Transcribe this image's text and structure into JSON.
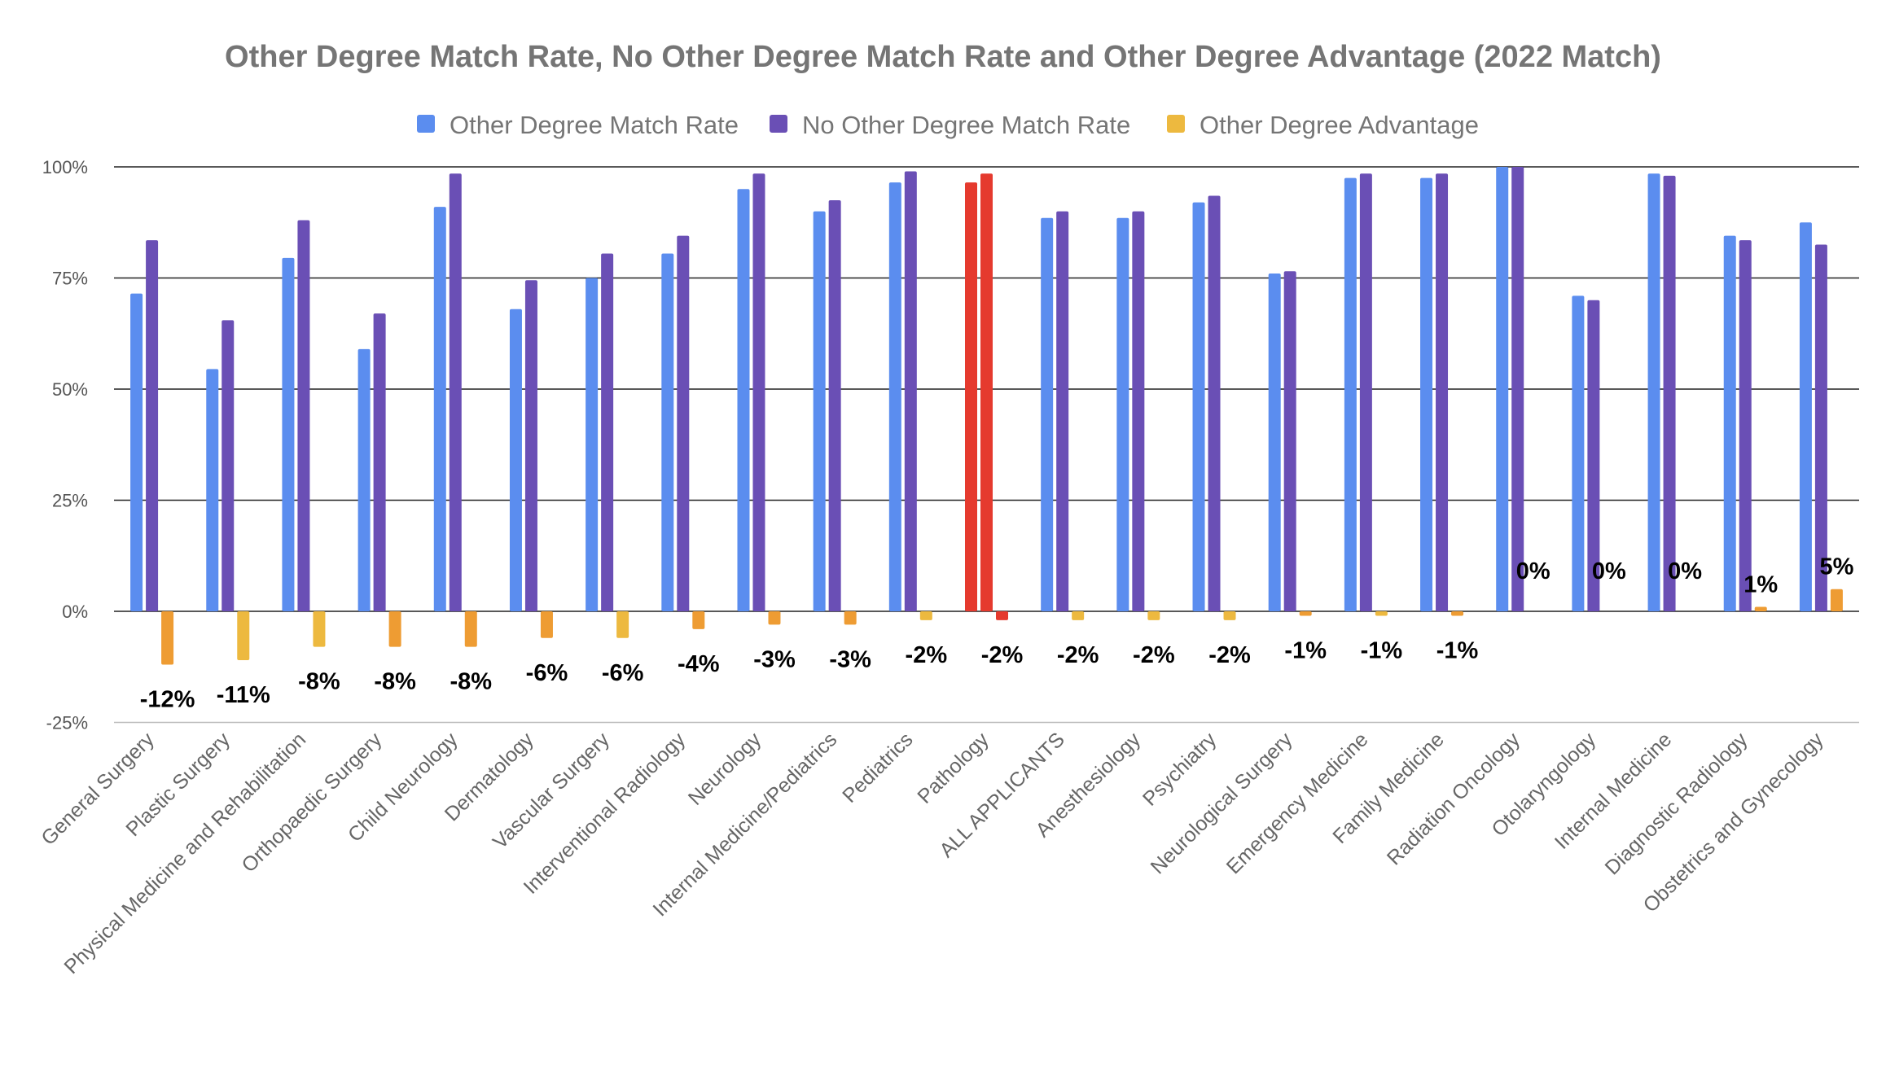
{
  "chart_data": {
    "type": "bar",
    "title": "Other Degree Match Rate, No Other Degree Match Rate and Other Degree Advantage (2022 Match)",
    "xlabel": "",
    "ylabel": "",
    "ylim": [
      -25,
      100
    ],
    "yticks": [
      100,
      75,
      50,
      25,
      0,
      -25
    ],
    "ytick_labels": [
      "100%",
      "75%",
      "50%",
      "25%",
      "0%",
      "-25%"
    ],
    "grid": true,
    "legend_position": "top",
    "categories": [
      "General Surgery",
      "Plastic Surgery",
      "Physical Medicine and Rehabilitation",
      "Orthopaedic Surgery",
      "Child Neurology",
      "Dermatology",
      "Vascular Surgery",
      "Interventional Radiology",
      "Neurology",
      "Internal Medicine/Pediatrics",
      "Pediatrics",
      "Pathology",
      "ALL APPLICANTS",
      "Anesthesiology",
      "Psychiatry",
      "Neurological Surgery",
      "Emergency Medicine",
      "Family Medicine",
      "Radiation Oncology",
      "Otolaryngology",
      "Internal Medicine",
      "Diagnostic Radiology",
      "Obstetrics and Gynecology"
    ],
    "series": [
      {
        "name": "Other Degree Match Rate",
        "color": "#5B8DEF",
        "values": [
          71.5,
          54.5,
          79.5,
          59,
          91,
          68,
          75,
          80.5,
          95,
          90,
          96.5,
          96.5,
          88.5,
          88.5,
          92,
          76,
          97.5,
          97.5,
          100,
          71,
          98.5,
          84.5,
          87.5
        ]
      },
      {
        "name": "No Other Degree Match Rate",
        "color": "#6A4FB5",
        "values": [
          83.5,
          65.5,
          88,
          67,
          98.5,
          74.5,
          80.5,
          84.5,
          98.5,
          92.5,
          99,
          98.5,
          90,
          90,
          93.5,
          76.5,
          98.5,
          98.5,
          100,
          70,
          98,
          83.5,
          82.5
        ]
      },
      {
        "name": "Other Degree Advantage",
        "color": "#EDB93F",
        "values": [
          -12,
          -11,
          -8,
          -8,
          -8,
          -6,
          -6,
          -4,
          -3,
          -3,
          -2,
          -2,
          -2,
          -2,
          -2,
          -1,
          -1,
          -1,
          0,
          0,
          0,
          1,
          5
        ],
        "labels": [
          "-12%",
          "-11%",
          "-8%",
          "-8%",
          "-8%",
          "-6%",
          "-6%",
          "-4%",
          "-3%",
          "-3%",
          "-2%",
          "-2%",
          "-2%",
          "-2%",
          "-2%",
          "-1%",
          "-1%",
          "-1%",
          "0%",
          "0%",
          "0%",
          "1%",
          "5%"
        ]
      }
    ],
    "highlight": {
      "category": "Pathology",
      "color": "#E53A2E"
    },
    "advantage_bar_colors": [
      "#EE9C33",
      "#EDB93F",
      "#EDB93F",
      "#EE9C33",
      "#EE9C33",
      "#EE9C33",
      "#EDB93F",
      "#EE9C33",
      "#EE9C33",
      "#EE9C33",
      "#EDB93F",
      "#E53A2E",
      "#EDB93F",
      "#EDB93F",
      "#EDB93F",
      "#EE9C33",
      "#EDB93F",
      "#EE9C33",
      "#EDB93F",
      "#EE9C33",
      "#EE9C33",
      "#EE9C33",
      "#EE9C33"
    ]
  },
  "legend": [
    {
      "label": "Other Degree Match Rate",
      "color": "#5B8DEF"
    },
    {
      "label": "No Other Degree Match Rate",
      "color": "#6A4FB5"
    },
    {
      "label": "Other Degree Advantage",
      "color": "#EDB93F"
    }
  ]
}
